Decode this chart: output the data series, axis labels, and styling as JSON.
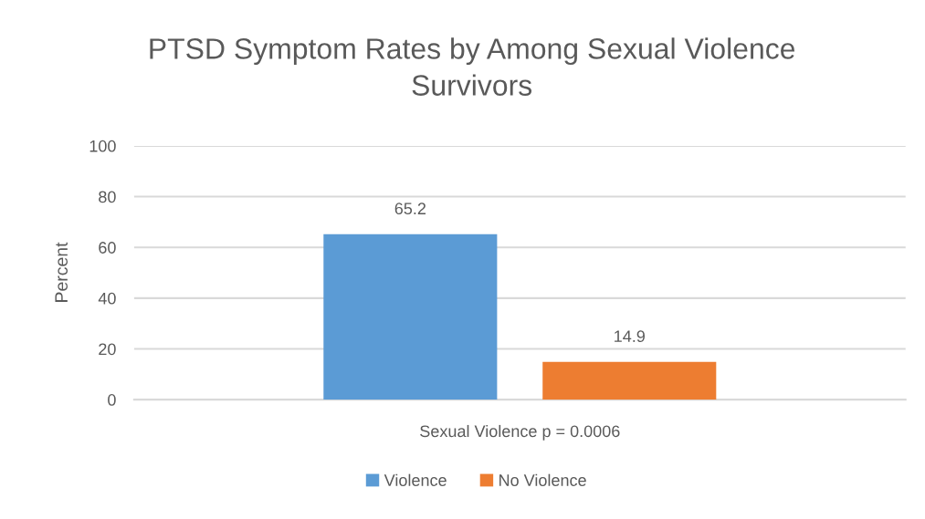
{
  "chart_data": {
    "type": "bar",
    "title": "PTSD Symptom Rates by Among Sexual Violence Survivors",
    "ylabel": "Percent",
    "categories": [
      "Sexual Violence p = 0.0006"
    ],
    "series": [
      {
        "name": "Violence",
        "color": "#5b9bd5",
        "values": [
          65.2
        ]
      },
      {
        "name": "No Violence",
        "color": "#ed7d31",
        "values": [
          14.9
        ]
      }
    ],
    "ylim": [
      0,
      100
    ],
    "yticks": [
      0,
      20,
      40,
      60,
      80,
      100
    ],
    "grid": "y",
    "legend": "bottom",
    "data_labels": true
  }
}
